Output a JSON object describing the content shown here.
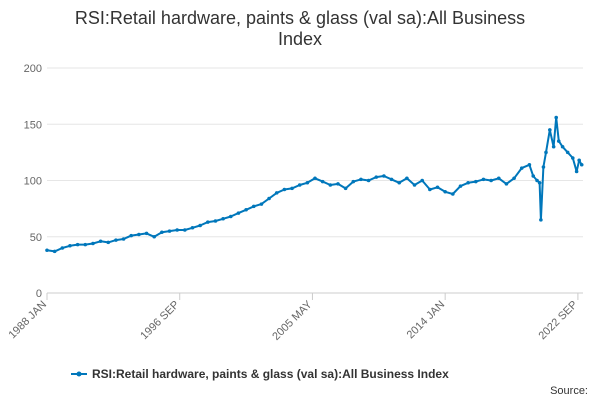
{
  "chart_data": {
    "type": "line",
    "title_lines": [
      "RSI:Retail hardware, paints & glass (val sa):All Business",
      "Index"
    ],
    "xlabel": "",
    "ylabel": "",
    "ylim": [
      0,
      200
    ],
    "yticks": [
      0,
      50,
      100,
      150,
      200
    ],
    "x_range": [
      "1988 JAN",
      "2023 JAN"
    ],
    "xtick_labels": [
      "1988 JAN",
      "1996 SEP",
      "2005 MAY",
      "2014 JAN",
      "2022 SEP"
    ],
    "grid": "horizontal",
    "legend_position": "bottom",
    "source_label": "Source:",
    "series": [
      {
        "name": "RSI:Retail hardware, paints & glass (val sa):All Business Index",
        "color": "#0077bb",
        "points": [
          [
            "1988 JAN",
            38
          ],
          [
            "1988 JUL",
            37
          ],
          [
            "1989 JAN",
            40
          ],
          [
            "1989 JUL",
            42
          ],
          [
            "1990 JAN",
            43
          ],
          [
            "1990 JUL",
            43
          ],
          [
            "1991 JAN",
            44
          ],
          [
            "1991 JUL",
            46
          ],
          [
            "1992 JAN",
            45
          ],
          [
            "1992 JUL",
            47
          ],
          [
            "1993 JAN",
            48
          ],
          [
            "1993 JUL",
            51
          ],
          [
            "1994 JAN",
            52
          ],
          [
            "1994 JUL",
            53
          ],
          [
            "1995 JAN",
            50
          ],
          [
            "1995 JUL",
            54
          ],
          [
            "1996 JAN",
            55
          ],
          [
            "1996 JUL",
            56
          ],
          [
            "1997 JAN",
            56
          ],
          [
            "1997 JUL",
            58
          ],
          [
            "1998 JAN",
            60
          ],
          [
            "1998 JUL",
            63
          ],
          [
            "1999 JAN",
            64
          ],
          [
            "1999 JUL",
            66
          ],
          [
            "2000 JAN",
            68
          ],
          [
            "2000 JUL",
            71
          ],
          [
            "2001 JAN",
            74
          ],
          [
            "2001 JUL",
            77
          ],
          [
            "2002 JAN",
            79
          ],
          [
            "2002 JUL",
            84
          ],
          [
            "2003 JAN",
            89
          ],
          [
            "2003 JUL",
            92
          ],
          [
            "2004 JAN",
            93
          ],
          [
            "2004 JUL",
            96
          ],
          [
            "2005 JAN",
            98
          ],
          [
            "2005 JUL",
            102
          ],
          [
            "2006 JAN",
            99
          ],
          [
            "2006 JUL",
            96
          ],
          [
            "2007 JAN",
            97
          ],
          [
            "2007 JUL",
            93
          ],
          [
            "2008 JAN",
            99
          ],
          [
            "2008 JUL",
            101
          ],
          [
            "2009 JAN",
            100
          ],
          [
            "2009 JUL",
            103
          ],
          [
            "2010 JAN",
            104
          ],
          [
            "2010 JUL",
            101
          ],
          [
            "2011 JAN",
            98
          ],
          [
            "2011 JUL",
            102
          ],
          [
            "2012 JAN",
            96
          ],
          [
            "2012 JUL",
            100
          ],
          [
            "2013 JAN",
            92
          ],
          [
            "2013 JUL",
            94
          ],
          [
            "2014 JAN",
            90
          ],
          [
            "2014 JUL",
            88
          ],
          [
            "2015 JAN",
            95
          ],
          [
            "2015 JUL",
            98
          ],
          [
            "2016 JAN",
            99
          ],
          [
            "2016 JUL",
            101
          ],
          [
            "2017 JAN",
            100
          ],
          [
            "2017 JUL",
            102
          ],
          [
            "2018 JAN",
            97
          ],
          [
            "2018 JUL",
            102
          ],
          [
            "2019 JAN",
            111
          ],
          [
            "2019 JUL",
            114
          ],
          [
            "2019 OCT",
            104
          ],
          [
            "2020 JAN",
            100
          ],
          [
            "2020 MAR",
            98
          ],
          [
            "2020 APR",
            65
          ],
          [
            "2020 JUN",
            112
          ],
          [
            "2020 AUG",
            125
          ],
          [
            "2020 NOV",
            145
          ],
          [
            "2021 FEB",
            130
          ],
          [
            "2021 APR",
            156
          ],
          [
            "2021 JUN",
            135
          ],
          [
            "2021 SEP",
            130
          ],
          [
            "2022 JAN",
            125
          ],
          [
            "2022 MAY",
            120
          ],
          [
            "2022 AUG",
            108
          ],
          [
            "2022 OCT",
            118
          ],
          [
            "2022 DEC",
            114
          ]
        ]
      }
    ]
  }
}
